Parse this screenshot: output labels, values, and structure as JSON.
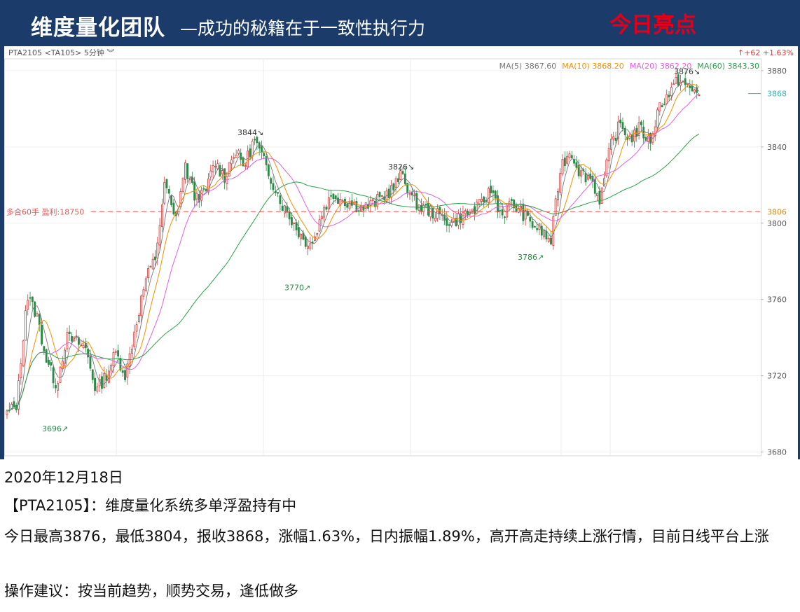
{
  "header": {
    "title": "维度量化团队",
    "subtitle": "—成功的秘籍在于一致性执行力",
    "badge": "今日亮点"
  },
  "chart_data": {
    "type": "candlestick",
    "symbol_label": "PTA2105 <TA105> 5分钟 ︾",
    "change_label": "↑+62 +1.63%",
    "ylim": [
      3680,
      3880
    ],
    "y_ticks": [
      3680,
      3720,
      3760,
      3800,
      3840,
      3880
    ],
    "last_price": 3868,
    "position_line": {
      "price": 3806,
      "label": "多合60手 盈利:18750"
    },
    "ma_legend": [
      {
        "name": "MA(5)",
        "value": "3867.60",
        "color": "#777777"
      },
      {
        "name": "MA(10)",
        "value": "3868.20",
        "color": "#f29100"
      },
      {
        "name": "MA(20)",
        "value": "3862.20",
        "color": "#e060e0"
      },
      {
        "name": "MA(60)",
        "value": "3843.30",
        "color": "#27a14a"
      }
    ],
    "colors": {
      "up": "#d03a3a",
      "down": "#2a8a46",
      "position": "#e05a5a",
      "last": "#3ab3b3"
    },
    "annotations": [
      {
        "text": "3696↗",
        "price": 3696,
        "kind": "low"
      },
      {
        "text": "3844↘",
        "price": 3844,
        "kind": "high"
      },
      {
        "text": "3770↗",
        "price": 3770,
        "kind": "low"
      },
      {
        "text": "3826↘",
        "price": 3826,
        "kind": "high"
      },
      {
        "text": "3786↗",
        "price": 3786,
        "kind": "low"
      },
      {
        "text": "3876↘",
        "price": 3876,
        "kind": "high"
      }
    ],
    "path_points": [
      3700,
      3705,
      3762,
      3752,
      3728,
      3715,
      3740,
      3738,
      3734,
      3712,
      3720,
      3732,
      3720,
      3746,
      3770,
      3782,
      3822,
      3800,
      3830,
      3814,
      3815,
      3832,
      3824,
      3838,
      3830,
      3844,
      3832,
      3820,
      3808,
      3800,
      3791,
      3790,
      3808,
      3815,
      3812,
      3810,
      3808,
      3810,
      3814,
      3818,
      3826,
      3812,
      3808,
      3806,
      3803,
      3800,
      3804,
      3806,
      3810,
      3818,
      3804,
      3810,
      3806,
      3800,
      3796,
      3790,
      3830,
      3838,
      3826,
      3824,
      3812,
      3840,
      3852,
      3844,
      3850,
      3842,
      3862,
      3868,
      3876,
      3870,
      3868
    ]
  },
  "info": {
    "date": "2020年12月18日",
    "summary": "【PTA2105】：维度量化系统多单浮盈持有中",
    "body": "今日最高3876，最低3804，报收3868，涨幅1.63%，日内振幅1.89%，高开高走持续上涨行情，目前日线平台上涨",
    "advice": "操作建议：按当前趋势，顺势交易，逢低做多"
  }
}
